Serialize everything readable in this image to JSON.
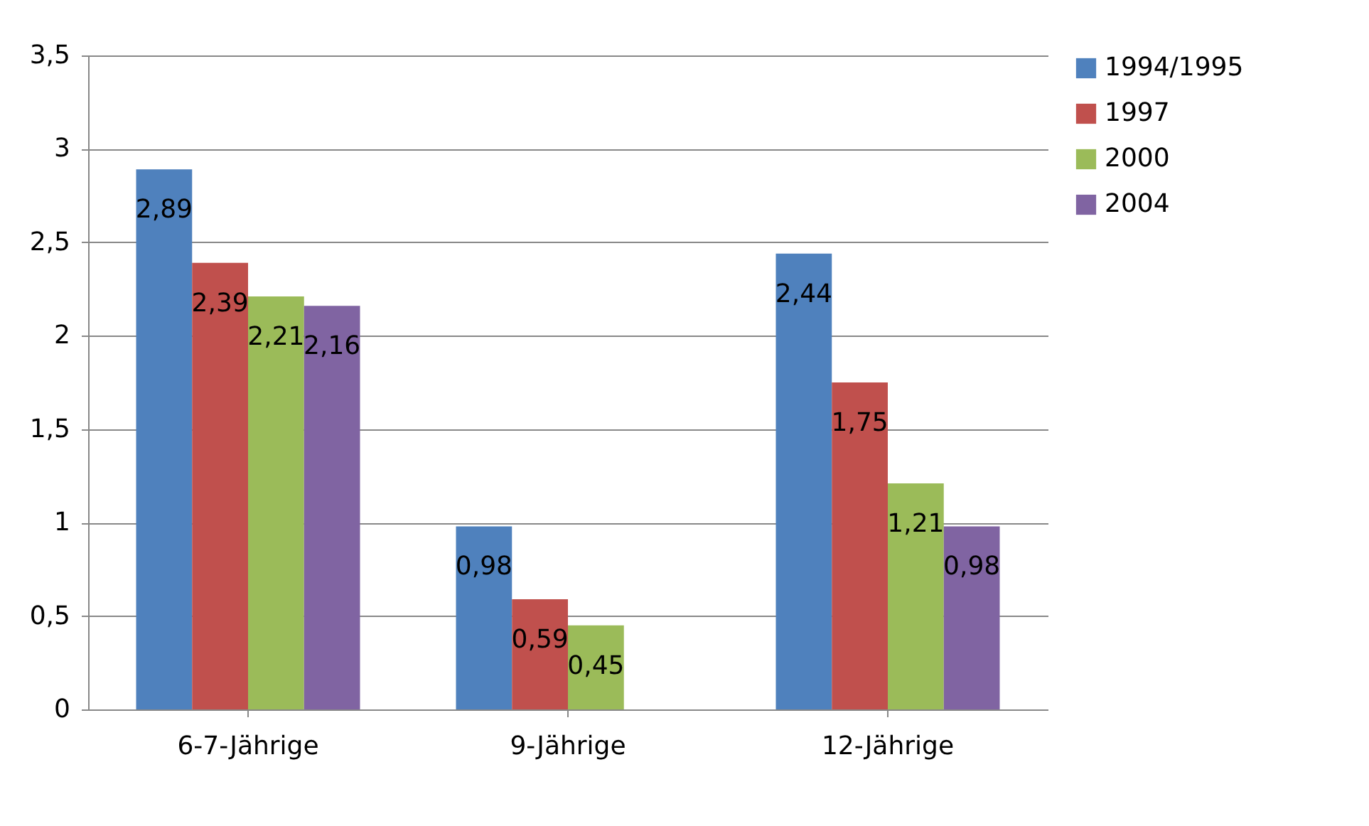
{
  "chart_data": {
    "type": "bar",
    "categories": [
      "6-7-Jährige",
      "9-Jährige",
      "12-Jährige"
    ],
    "series": [
      {
        "name": "1994/1995",
        "color": "#4f81bd",
        "values": [
          2.89,
          0.98,
          2.44
        ],
        "value_labels": [
          "2,89",
          "0,98",
          "2,44"
        ]
      },
      {
        "name": "1997",
        "color": "#c0504d",
        "values": [
          2.39,
          0.59,
          1.75
        ],
        "value_labels": [
          "2,39",
          "0,59",
          "1,75"
        ]
      },
      {
        "name": "2000",
        "color": "#9bbb59",
        "values": [
          2.21,
          0.45,
          1.21
        ],
        "value_labels": [
          "2,21",
          "0,45",
          "1,21"
        ]
      },
      {
        "name": "2004",
        "color": "#8064a2",
        "values": [
          2.16,
          null,
          0.98
        ],
        "value_labels": [
          "2,16",
          null,
          "0,98"
        ]
      }
    ],
    "ylim": [
      0,
      3.5
    ],
    "yticks": [
      0,
      {
        "value": 0.5,
        "label": "0,5"
      },
      1,
      {
        "value": 1.5,
        "label": "1,5"
      },
      2,
      {
        "value": 2.5,
        "label": "2,5"
      },
      3,
      {
        "value": 3.5,
        "label": "3,5"
      }
    ],
    "grid": "y",
    "legend": "right"
  }
}
